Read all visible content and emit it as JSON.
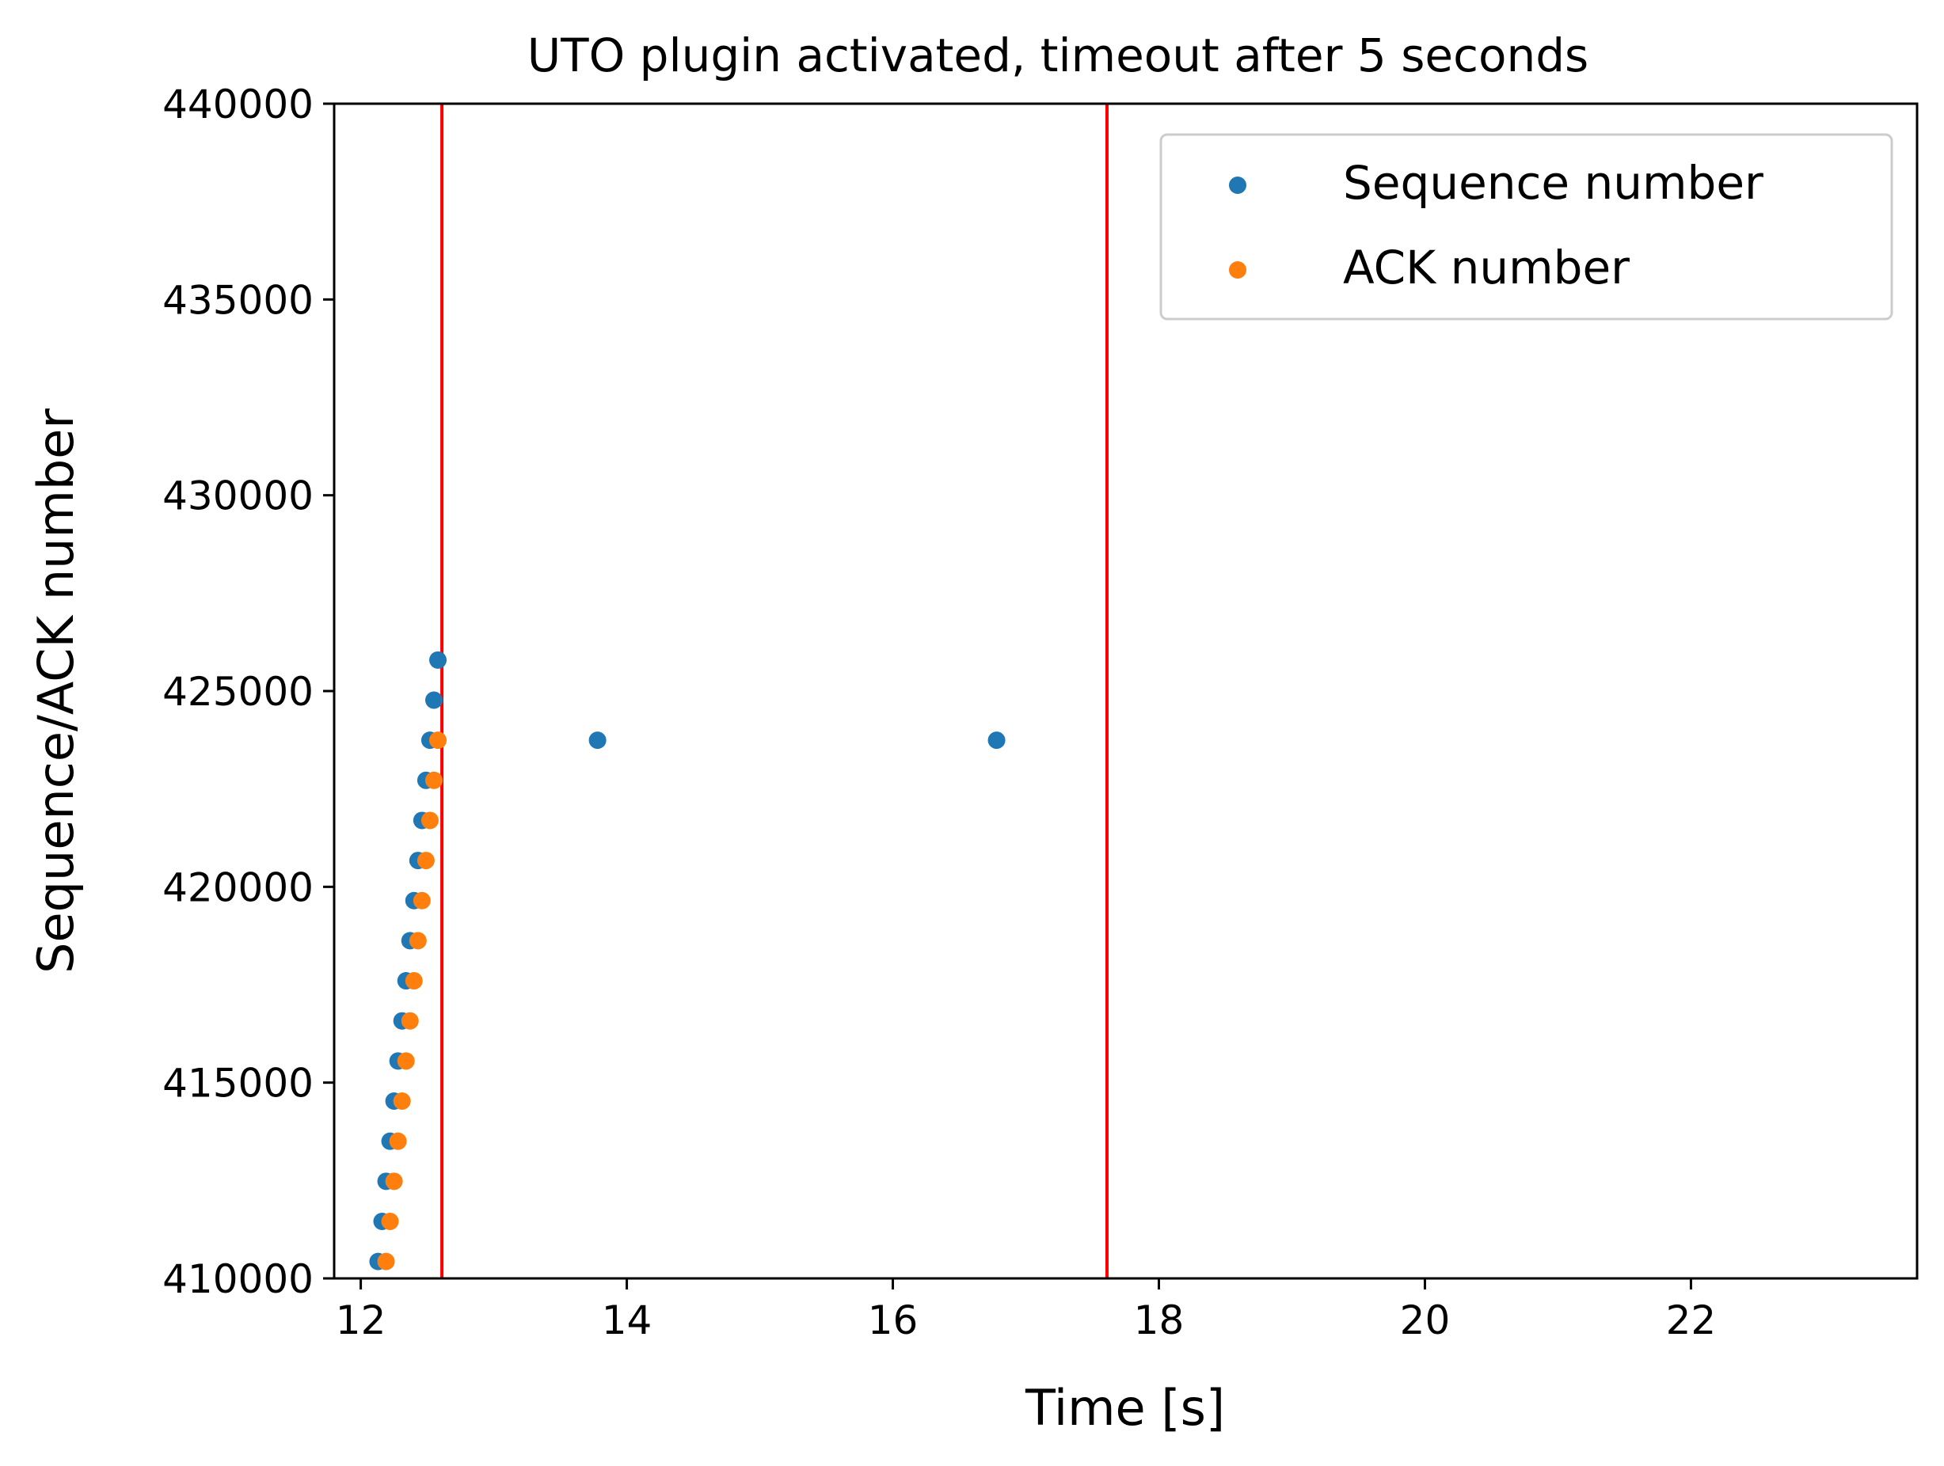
{
  "chart_data": {
    "type": "scatter",
    "title": "UTO plugin activated, timeout after 5 seconds",
    "xlabel": "Time [s]",
    "ylabel": "Sequence/ACK number",
    "xlim": [
      11.8,
      23.7
    ],
    "ylim": [
      410000,
      440000
    ],
    "xticks": [
      12,
      14,
      16,
      18,
      20,
      22
    ],
    "xtick_labels": [
      "12",
      "14",
      "16",
      "18",
      "20",
      "22"
    ],
    "yticks": [
      410000,
      415000,
      420000,
      425000,
      430000,
      435000,
      440000
    ],
    "ytick_labels": [
      "410000",
      "415000",
      "420000",
      "425000",
      "430000",
      "435000",
      "440000"
    ],
    "grid": false,
    "legend_position": "upper-right",
    "vertical_lines": [
      {
        "x": 12.61,
        "color": "#ff0000"
      },
      {
        "x": 17.61,
        "color": "#ff0000"
      }
    ],
    "series": [
      {
        "name": "Sequence number",
        "color": "#1f77b4",
        "points": [
          [
            12.13,
            410432
          ],
          [
            12.16,
            411456
          ],
          [
            12.19,
            412480
          ],
          [
            12.22,
            413504
          ],
          [
            12.25,
            414528
          ],
          [
            12.28,
            415552
          ],
          [
            12.31,
            416576
          ],
          [
            12.34,
            417600
          ],
          [
            12.37,
            418624
          ],
          [
            12.4,
            419648
          ],
          [
            12.43,
            420672
          ],
          [
            12.46,
            421696
          ],
          [
            12.49,
            422720
          ],
          [
            12.52,
            423744
          ],
          [
            12.55,
            424768
          ],
          [
            12.58,
            425792
          ],
          [
            13.78,
            423744
          ],
          [
            16.78,
            423744
          ]
        ]
      },
      {
        "name": "ACK number",
        "color": "#ff7f0e",
        "points": [
          [
            12.19,
            410432
          ],
          [
            12.22,
            411456
          ],
          [
            12.25,
            412480
          ],
          [
            12.28,
            413504
          ],
          [
            12.31,
            414528
          ],
          [
            12.34,
            415552
          ],
          [
            12.37,
            416576
          ],
          [
            12.4,
            417600
          ],
          [
            12.43,
            418624
          ],
          [
            12.46,
            419648
          ],
          [
            12.49,
            420672
          ],
          [
            12.52,
            421696
          ],
          [
            12.55,
            422720
          ],
          [
            12.58,
            423744
          ]
        ]
      }
    ]
  }
}
